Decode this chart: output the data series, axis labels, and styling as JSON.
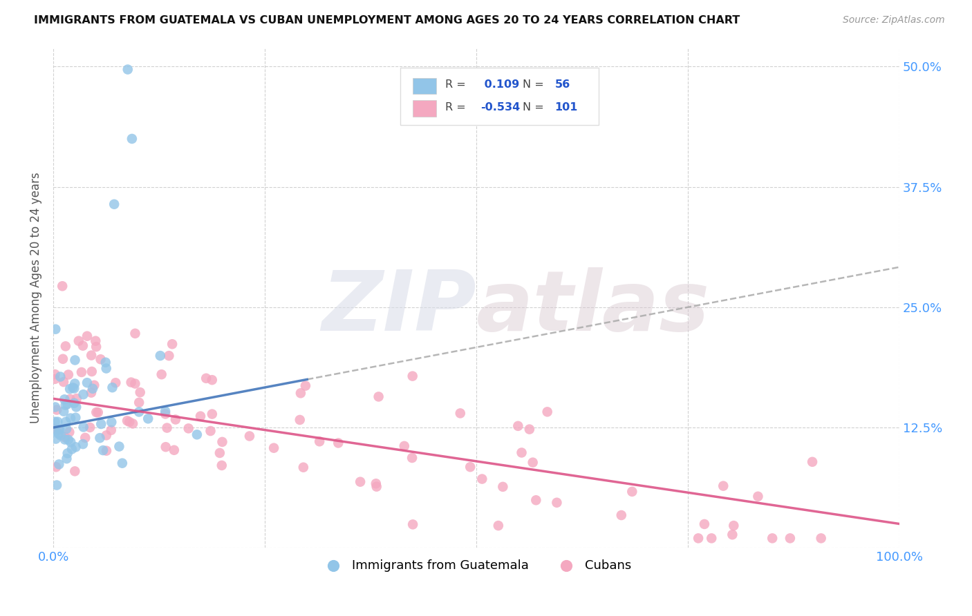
{
  "title": "IMMIGRANTS FROM GUATEMALA VS CUBAN UNEMPLOYMENT AMONG AGES 20 TO 24 YEARS CORRELATION CHART",
  "source": "Source: ZipAtlas.com",
  "ylabel": "Unemployment Among Ages 20 to 24 years",
  "xlim": [
    0,
    1.0
  ],
  "ylim": [
    0,
    0.52
  ],
  "blue_R": 0.109,
  "blue_N": 56,
  "pink_R": -0.534,
  "pink_N": 101,
  "blue_color": "#92c5e8",
  "pink_color": "#f4a8c0",
  "blue_line_color": "#4477bb",
  "pink_line_color": "#dd5588",
  "legend_blue_label": "Immigrants from Guatemala",
  "legend_pink_label": "Cubans",
  "background_color": "#ffffff",
  "blue_line_x0": 0.0,
  "blue_line_y0": 0.125,
  "blue_line_x1": 0.3,
  "blue_line_y1": 0.175,
  "pink_line_x0": 0.0,
  "pink_line_y0": 0.155,
  "pink_line_x1": 1.0,
  "pink_line_y1": 0.025
}
